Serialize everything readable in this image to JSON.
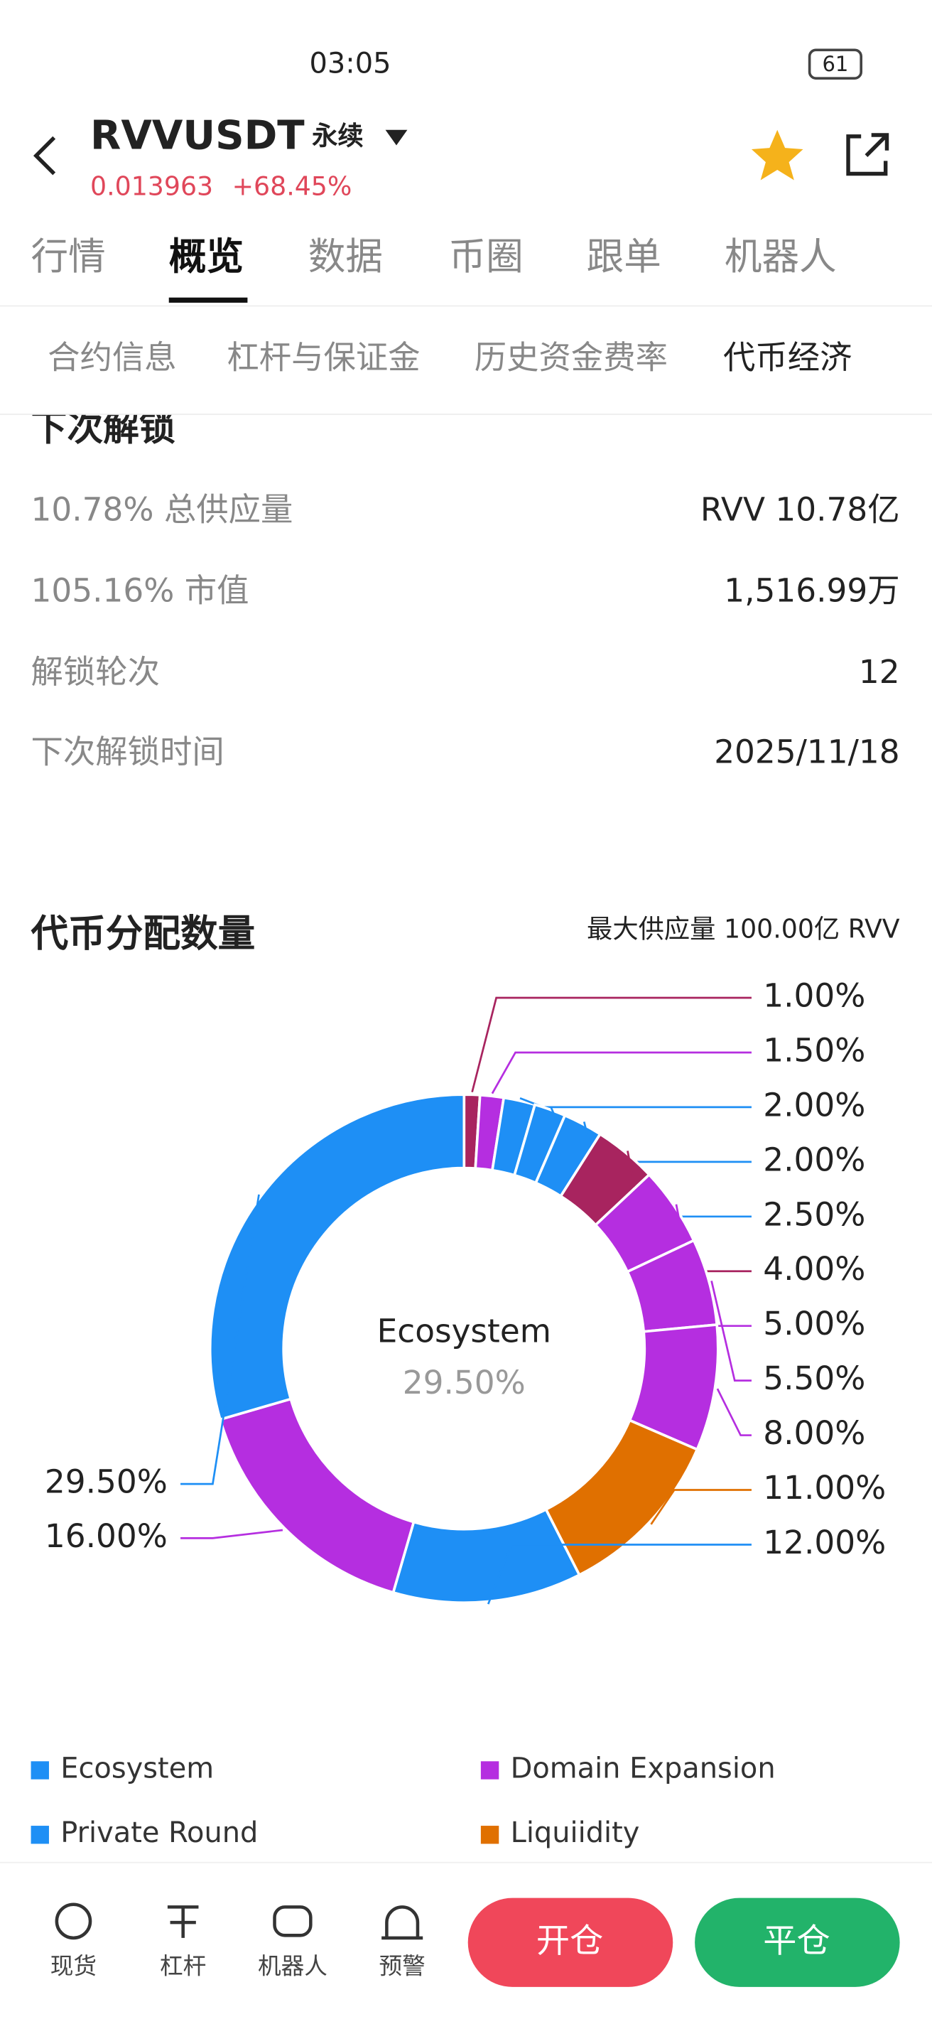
{
  "status_bar": {
    "time": "03:05",
    "battery": "61"
  },
  "header": {
    "symbol": "RVVUSDT",
    "contract": "永续",
    "price": "0.013963",
    "change": "+68.45%"
  },
  "tabs": [
    "行情",
    "概览",
    "数据",
    "币圈",
    "跟单",
    "机器人"
  ],
  "sub_tabs": [
    "合约信息",
    "杠杆与保证金",
    "历史资金费率",
    "代币经济"
  ],
  "section_title": "下次解锁",
  "rows": [
    [
      "10.78% 总供应量",
      "RVV 10.78亿"
    ],
    [
      "105.16% 市值",
      "1,516.99万"
    ],
    [
      "解锁轮次",
      "12"
    ],
    [
      "下次解锁时间",
      "2025/11/18"
    ]
  ],
  "chart_data": {
    "type": "pie",
    "title": "代币分配数量",
    "subtitle": "最大供应量 100.00亿 RVV",
    "donut": true,
    "categories": [
      null,
      null,
      null,
      null,
      null,
      null,
      null,
      null,
      null,
      "Liquiidity",
      "Private Round",
      "Domain Expansion",
      "Ecosystem"
    ],
    "values": [
      1.0,
      1.5,
      2.0,
      2.0,
      2.5,
      4.0,
      5.0,
      5.5,
      8.0,
      11.0,
      12.0,
      16.0,
      29.5
    ],
    "value_labels": [
      "1.00%",
      "1.50%",
      "2.00%",
      "2.00%",
      "2.50%",
      "4.00%",
      "5.00%",
      "5.50%",
      "8.00%",
      "11.00%",
      "12.00%",
      "16.00%",
      "29.50%"
    ],
    "colors": [
      "#a8245f",
      "#b52ee0",
      "#1e8ff5",
      "#1e8ff5",
      "#1e8ff5",
      "#a8245f",
      "#b52ee0",
      "#b52ee0",
      "#b52ee0",
      "#e07000",
      "#1e8ff5",
      "#b52ee0",
      "#1e8ff5"
    ]
  },
  "bottom_nav": [
    "现货",
    "杠杆",
    "机器人",
    "预警"
  ],
  "buttons": [
    "开仓",
    "平仓"
  ]
}
